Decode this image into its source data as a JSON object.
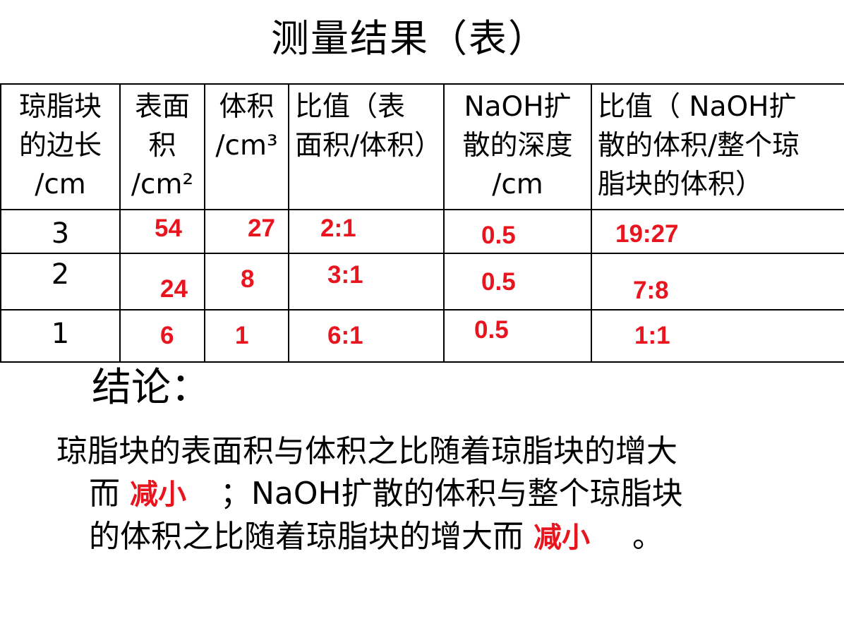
{
  "title": "测量结果（表）",
  "table": {
    "headers": [
      "琼脂块的边长/cm",
      "表面积/cm²",
      "体积/cm³",
      "比值（表面积/体积）",
      "NaOH扩散的深度/cm",
      "比值（ NaOH扩散的体积/整个琼脂块的体积）"
    ],
    "header_lines": [
      [
        "琼脂块",
        "的边长",
        "/cm"
      ],
      [
        "表面",
        "积",
        "/cm²"
      ],
      [
        "体积",
        "/cm³"
      ],
      [
        "比值（表",
        "面积/体积）"
      ],
      [
        "NaOH扩",
        "散的深度",
        "/cm"
      ],
      [
        "比值（ NaOH扩",
        "散的体积/整个琼",
        "脂块的体积）"
      ]
    ],
    "rows": [
      {
        "side": "3",
        "area": "54",
        "volume": "27",
        "ratio": "2:1",
        "depth": "0.5",
        "diff_ratio": "19:27"
      },
      {
        "side": "2",
        "area": "24",
        "volume": "8",
        "ratio": "3:1",
        "depth": "0.5",
        "diff_ratio": "7:8"
      },
      {
        "side": "1",
        "area": "6",
        "volume": "1",
        "ratio": "6:1",
        "depth": "0.5",
        "diff_ratio": "1:1"
      }
    ]
  },
  "conclusion": {
    "label": "结论：",
    "line1": "琼脂块的表面积与体积之比随着琼脂块的增大",
    "line2_prefix": "而",
    "answer1": "减小",
    "line2_suffix": "；NaOH扩散的体积与整个琼脂块",
    "line3_prefix": "的体积之比随着琼脂块的增大而",
    "answer2": "减小",
    "line3_suffix": "。"
  },
  "colors": {
    "answer_red": "#e8141e",
    "text": "#000000",
    "background": "#ffffff"
  }
}
